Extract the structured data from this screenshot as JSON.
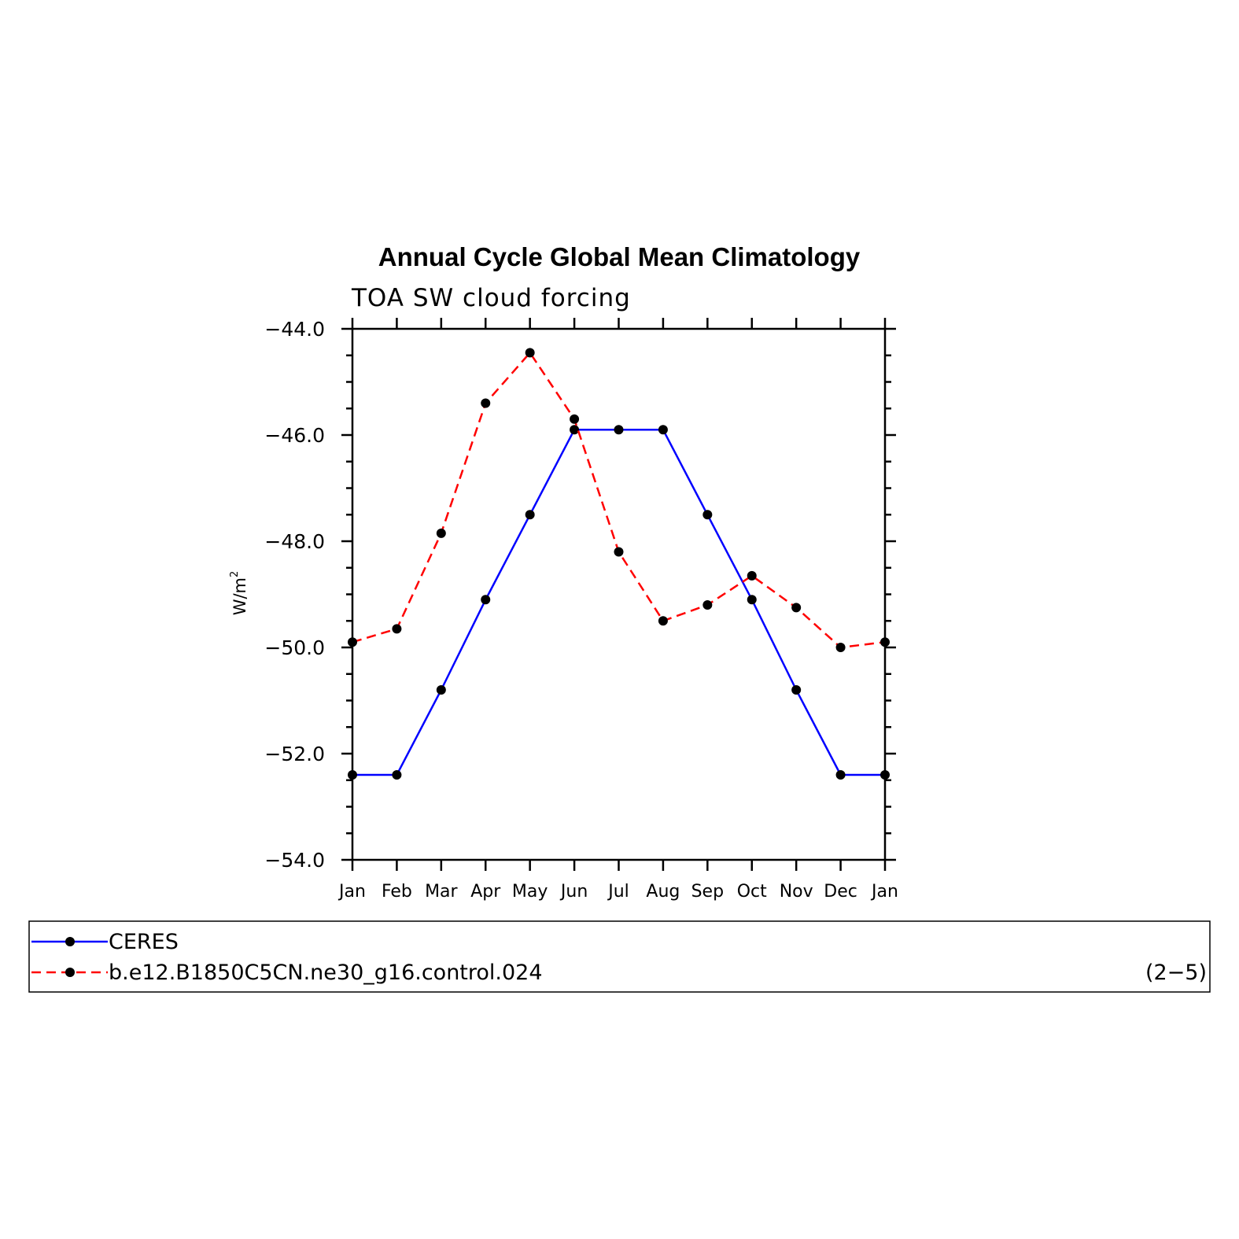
{
  "chart_data": {
    "type": "line",
    "title": "Annual Cycle Global Mean Climatology",
    "subtitle": "TOA SW cloud forcing",
    "ylabel": "W/m",
    "ylabel_superscript": "2",
    "categories": [
      "Jan",
      "Feb",
      "Mar",
      "Apr",
      "May",
      "Jun",
      "Jul",
      "Aug",
      "Sep",
      "Oct",
      "Nov",
      "Dec",
      "Jan"
    ],
    "ylim": [
      -54.0,
      -44.0
    ],
    "yticks": [
      -44.0,
      -46.0,
      -48.0,
      -50.0,
      -52.0,
      -54.0
    ],
    "ytick_labels": [
      "−44.0",
      "−46.0",
      "−48.0",
      "−50.0",
      "−52.0",
      "−54.0"
    ],
    "grid": false,
    "legend_position": "bottom",
    "series": [
      {
        "name": "CERES",
        "color": "#0000ff",
        "dash": "solid",
        "marker": "dot",
        "values": [
          -52.4,
          -52.4,
          -50.8,
          -49.1,
          -47.5,
          -45.9,
          -45.9,
          -45.9,
          -47.5,
          -49.1,
          -50.8,
          -52.4,
          -52.4
        ]
      },
      {
        "name": "b.e12.B1850C5CN.ne30_g16.control.024",
        "color": "#ff0000",
        "dash": "dashed",
        "marker": "dot",
        "values": [
          -49.9,
          -49.65,
          -47.85,
          -45.4,
          -44.45,
          -45.7,
          -48.2,
          -49.5,
          -49.2,
          -48.65,
          -49.25,
          -50.0,
          -49.9
        ]
      }
    ],
    "panel_label": "(2−5)"
  }
}
